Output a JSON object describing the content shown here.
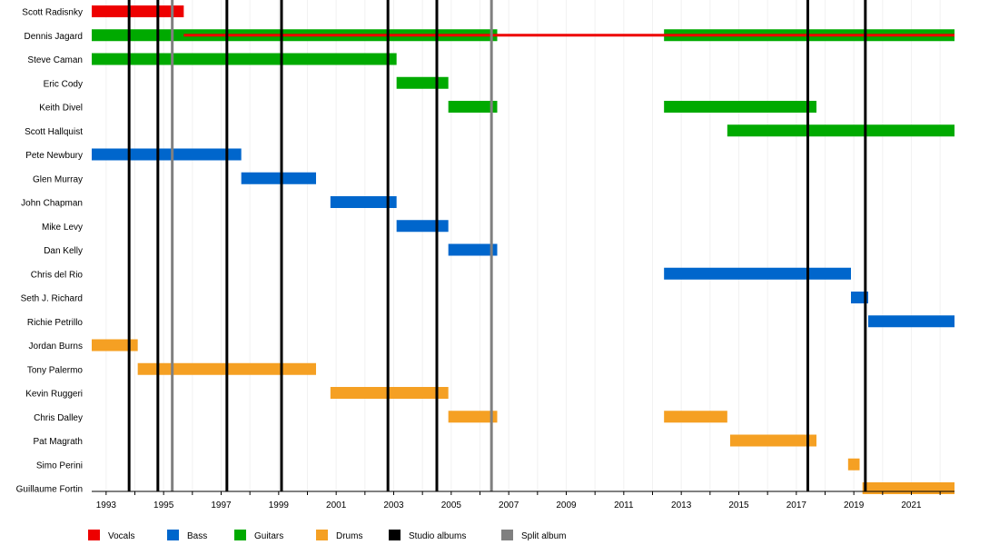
{
  "chart_data": {
    "type": "timeline",
    "title": "",
    "xlabel": "",
    "ylabel": "",
    "xlim": [
      1992.5,
      2022.5
    ],
    "x_ticks": [
      "1993",
      "1995",
      "1997",
      "1999",
      "2001",
      "2003",
      "2005",
      "2007",
      "2009",
      "2011",
      "2013",
      "2015",
      "2017",
      "2019",
      "2021"
    ],
    "members": [
      "Scott Radisnky",
      "Dennis Jagard",
      "Steve Caman",
      "Eric Cody",
      "Keith Divel",
      "Scott Hallquist",
      "Pete Newbury",
      "Glen Murray",
      "John Chapman",
      "Mike Levy",
      "Dan Kelly",
      "Chris del Rio",
      "Seth J. Richard",
      "Richie Petrillo",
      "Jordan Burns",
      "Tony Palermo",
      "Kevin Ruggeri",
      "Chris Dalley",
      "Pat Magrath",
      "Simo Perini",
      "Guillaume Fortin"
    ],
    "legend": [
      {
        "label": "Vocals",
        "color": "#ee0000"
      },
      {
        "label": "Bass",
        "color": "#0066cc"
      },
      {
        "label": "Guitars",
        "color": "#00aa00"
      },
      {
        "label": "Drums",
        "color": "#f5a023"
      },
      {
        "label": "Studio albums",
        "color": "#000000"
      },
      {
        "label": "Split album",
        "color": "#808080"
      }
    ],
    "bars": [
      {
        "member": "Scott Radisnky",
        "role": "Vocals",
        "start": 1992.5,
        "end": 1995.7
      },
      {
        "member": "Dennis Jagard",
        "role": "Guitars",
        "start": 1992.5,
        "end": 2006.6
      },
      {
        "member": "Dennis Jagard",
        "role": "Guitars",
        "start": 2012.4,
        "end": 2022.5
      },
      {
        "member": "Dennis Jagard",
        "role": "Vocals",
        "start": 1995.7,
        "end": 2022.5,
        "thin": true
      },
      {
        "member": "Steve Caman",
        "role": "Guitars",
        "start": 1992.5,
        "end": 2003.1
      },
      {
        "member": "Eric Cody",
        "role": "Guitars",
        "start": 2003.1,
        "end": 2004.9
      },
      {
        "member": "Keith Divel",
        "role": "Guitars",
        "start": 2004.9,
        "end": 2006.6
      },
      {
        "member": "Keith Divel",
        "role": "Guitars",
        "start": 2012.4,
        "end": 2017.7
      },
      {
        "member": "Scott Hallquist",
        "role": "Guitars",
        "start": 2014.6,
        "end": 2022.5
      },
      {
        "member": "Pete Newbury",
        "role": "Bass",
        "start": 1992.5,
        "end": 1997.7
      },
      {
        "member": "Glen Murray",
        "role": "Bass",
        "start": 1997.7,
        "end": 2000.3
      },
      {
        "member": "John Chapman",
        "role": "Bass",
        "start": 2000.8,
        "end": 2003.1
      },
      {
        "member": "Mike Levy",
        "role": "Bass",
        "start": 2003.1,
        "end": 2004.9
      },
      {
        "member": "Dan Kelly",
        "role": "Bass",
        "start": 2004.9,
        "end": 2006.6
      },
      {
        "member": "Chris del Rio",
        "role": "Bass",
        "start": 2012.4,
        "end": 2018.9
      },
      {
        "member": "Seth J. Richard",
        "role": "Bass",
        "start": 2018.9,
        "end": 2019.5
      },
      {
        "member": "Richie Petrillo",
        "role": "Bass",
        "start": 2019.5,
        "end": 2022.5
      },
      {
        "member": "Jordan Burns",
        "role": "Drums",
        "start": 1992.5,
        "end": 1994.1
      },
      {
        "member": "Tony Palermo",
        "role": "Drums",
        "start": 1994.1,
        "end": 2000.3
      },
      {
        "member": "Kevin Ruggeri",
        "role": "Drums",
        "start": 2000.8,
        "end": 2004.9
      },
      {
        "member": "Chris Dalley",
        "role": "Drums",
        "start": 2004.9,
        "end": 2006.6
      },
      {
        "member": "Chris Dalley",
        "role": "Drums",
        "start": 2012.4,
        "end": 2014.6
      },
      {
        "member": "Pat Magrath",
        "role": "Drums",
        "start": 2014.7,
        "end": 2017.7
      },
      {
        "member": "Simo Perini",
        "role": "Drums",
        "start": 2018.8,
        "end": 2019.2
      },
      {
        "member": "Guillaume Fortin",
        "role": "Drums",
        "start": 2019.3,
        "end": 2022.5
      }
    ],
    "events": [
      {
        "type": "Studio albums",
        "x": 1993.8
      },
      {
        "type": "Studio albums",
        "x": 1994.8
      },
      {
        "type": "Split album",
        "x": 1995.3
      },
      {
        "type": "Studio albums",
        "x": 1997.2
      },
      {
        "type": "Studio albums",
        "x": 1999.1
      },
      {
        "type": "Studio albums",
        "x": 2002.8
      },
      {
        "type": "Studio albums",
        "x": 2004.5
      },
      {
        "type": "Split album",
        "x": 2006.4
      },
      {
        "type": "Studio albums",
        "x": 2017.4
      },
      {
        "type": "Studio albums",
        "x": 2019.4
      }
    ]
  }
}
